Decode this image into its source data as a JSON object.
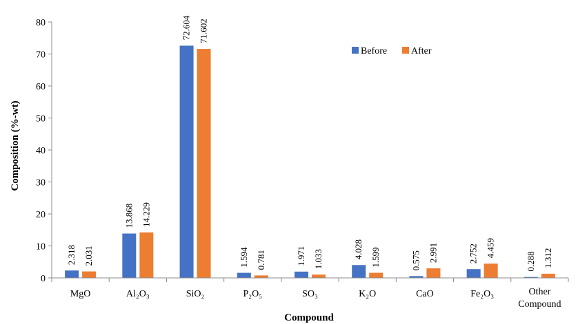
{
  "chart_data": {
    "type": "bar",
    "xlabel": "Compound",
    "ylabel": "Composition (%-wt)",
    "ylim": [
      0,
      80
    ],
    "yticks": [
      0,
      10,
      20,
      30,
      40,
      50,
      60,
      70,
      80
    ],
    "grid": false,
    "legend_position": "top-right",
    "categories": [
      "MgO",
      "Al₂O₃",
      "SiO₂",
      "P₂O₅",
      "SO₃",
      "K₂O",
      "CaO",
      "Fe₂O₃",
      "Other Compound"
    ],
    "series": [
      {
        "name": "Before",
        "color": "#4472C4",
        "values": [
          2.318,
          13.868,
          72.604,
          1.594,
          1.971,
          4.028,
          0.575,
          2.752,
          0.288
        ],
        "labels": [
          "2.318",
          "13.868",
          "72.604",
          "1.594",
          "1.971",
          "4.028",
          "0.575",
          "2.752",
          "0.288"
        ]
      },
      {
        "name": "After",
        "color": "#ED7D31",
        "values": [
          2.031,
          14.229,
          71.602,
          0.781,
          1.033,
          1.599,
          2.991,
          4.459,
          1.312
        ],
        "labels": [
          "2.031",
          "14.229",
          "71.602",
          "0.781",
          "1.033",
          "1.599",
          "2.991",
          "4.459",
          "1.312"
        ]
      }
    ]
  }
}
